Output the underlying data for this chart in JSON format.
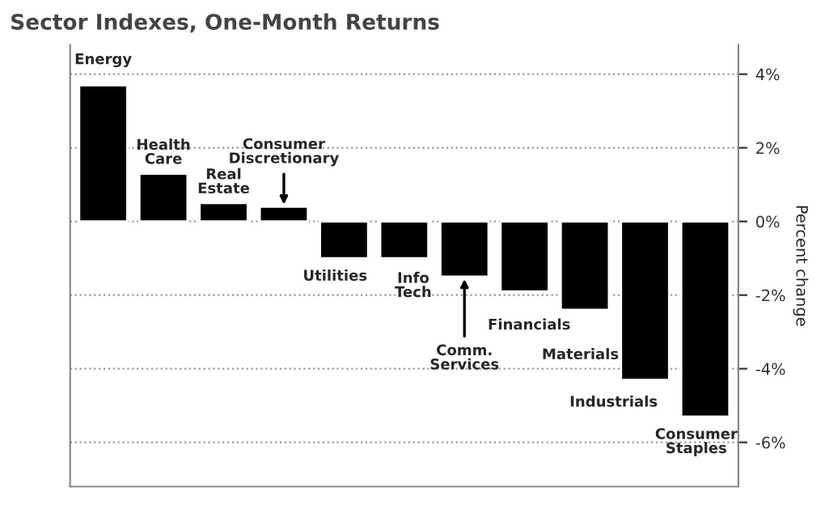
{
  "chart_data": {
    "type": "bar",
    "title": "Sector Indexes, One-Month Returns",
    "ylabel": "Percent change",
    "categories": [
      "Energy",
      "Health Care",
      "Real Estate",
      "Consumer Discretionary",
      "Utilities",
      "Info Tech",
      "Comm. Services",
      "Financials",
      "Materials",
      "Industrials",
      "Consumer Staples"
    ],
    "values": [
      3.7,
      1.3,
      0.5,
      0.4,
      -1.0,
      -1.0,
      -1.5,
      -1.9,
      -2.4,
      -4.3,
      -5.3
    ],
    "color": "#000000",
    "ylim": [
      -7.2,
      4.8
    ],
    "yticks": [
      {
        "value": -6,
        "label": "-6%"
      },
      {
        "value": -4,
        "label": "-4%"
      },
      {
        "value": -2,
        "label": "-2%"
      },
      {
        "value": 0,
        "label": "0%"
      },
      {
        "value": 2,
        "label": "2%"
      },
      {
        "value": 4,
        "label": "4%"
      }
    ],
    "grid": "y",
    "tick_labels": "y"
  }
}
